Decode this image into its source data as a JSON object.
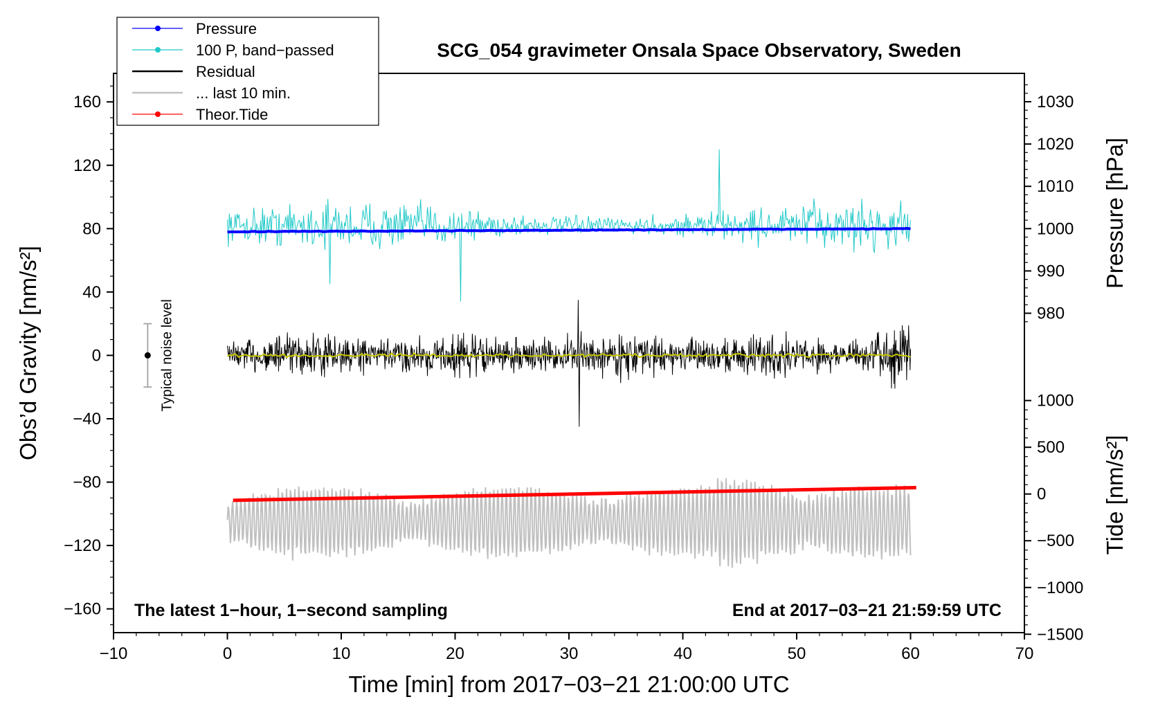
{
  "chart_data": {
    "type": "line",
    "title": "SCG_054 gravimeter Onsala Space Observatory, Sweden",
    "xlabel": "Time [min] from 2017−03−21 21:00:00 UTC",
    "ylabel_left": "Obs’d Gravity [nm/s²]",
    "ylabel_right_top": "Pressure [hPa]",
    "ylabel_right_bottom": "Tide [nm/s²]",
    "xlim": [
      -10,
      70
    ],
    "ylim": [
      -175,
      178
    ],
    "x_ticks": [
      "−10",
      "0",
      "10",
      "20",
      "30",
      "40",
      "50",
      "60",
      "70"
    ],
    "x_tick_values": [
      -10,
      0,
      10,
      20,
      30,
      40,
      50,
      60,
      70
    ],
    "y_ticks": [
      "160",
      "120",
      "80",
      "40",
      "0",
      "−40",
      "−80",
      "−120",
      "−160"
    ],
    "y_tick_values": [
      160,
      120,
      80,
      40,
      0,
      -40,
      -80,
      -120,
      -160
    ],
    "pressure_axis": {
      "ticks": [
        "1030",
        "1020",
        "1010",
        "1000",
        "990",
        "980"
      ],
      "values": [
        1030,
        1020,
        1010,
        1000,
        990,
        980
      ],
      "gravity_equivalent": {
        "hPa_at_zero_offset": 1000,
        "gravity_at_1000hPa": 80,
        "gravity_per_10hPa": 26.7
      }
    },
    "tide_axis": {
      "ticks": [
        "1000",
        "500",
        "0",
        "−500",
        "−1000",
        "−1500"
      ],
      "values": [
        1000,
        500,
        0,
        -500,
        -1000,
        -1500
      ],
      "gravity_equivalent": {
        "tide_at_zero": 0,
        "gravity_at_zero": -87.5,
        "gravity_per_500": 29.5
      }
    },
    "legend": [
      {
        "label": "Pressure",
        "color": "#0000ff",
        "marker": true
      },
      {
        "label": "100 P, band−passed",
        "color": "#20c8c8",
        "marker": true
      },
      {
        "label": "Residual",
        "color": "#000000",
        "marker": false
      },
      {
        "label": "... last 10 min.",
        "color": "#c0c0c0",
        "marker": false
      },
      {
        "label": "Theor.Tide",
        "color": "#ff0000",
        "marker": true
      }
    ],
    "series": [
      {
        "name": "Pressure",
        "color": "#0000ff",
        "x_range": [
          0,
          60
        ],
        "y_start": 78,
        "y_end": 80
      },
      {
        "name": "100 P, band−passed",
        "color": "#20c8c8",
        "x_range": [
          0,
          60
        ],
        "center": 82,
        "amplitude": 18,
        "spikes": [
          [
            20.5,
            34
          ],
          [
            43.2,
            130
          ],
          [
            9,
            45
          ]
        ]
      },
      {
        "name": "Residual",
        "color": "#000000",
        "x_range": [
          0,
          60
        ],
        "center": 0,
        "amplitude": 17,
        "spikes": [
          [
            30.8,
            35
          ],
          [
            30.9,
            -45
          ]
        ]
      },
      {
        "name": "Residual smoothed",
        "color": "#c8c800",
        "x_range": [
          0,
          60
        ],
        "center": 0,
        "amplitude": 1.5
      },
      {
        "name": "... last 10 min.",
        "color": "#c0c0c0",
        "x_range": [
          0,
          60
        ],
        "center": -105,
        "amplitude": 22
      },
      {
        "name": "Theor.Tide",
        "color": "#ff0000",
        "x_range": [
          0.5,
          60.5
        ],
        "y_start": -91.5,
        "y_end": -83.5
      }
    ],
    "noise_bar": {
      "label": "Typical noise level",
      "x": -7,
      "y": 0,
      "range": [
        -20,
        20
      ]
    },
    "annotations": {
      "bottom_left": "The latest 1−hour, 1−second sampling",
      "bottom_right": "End at 2017−03−21 21:59:59 UTC"
    }
  }
}
